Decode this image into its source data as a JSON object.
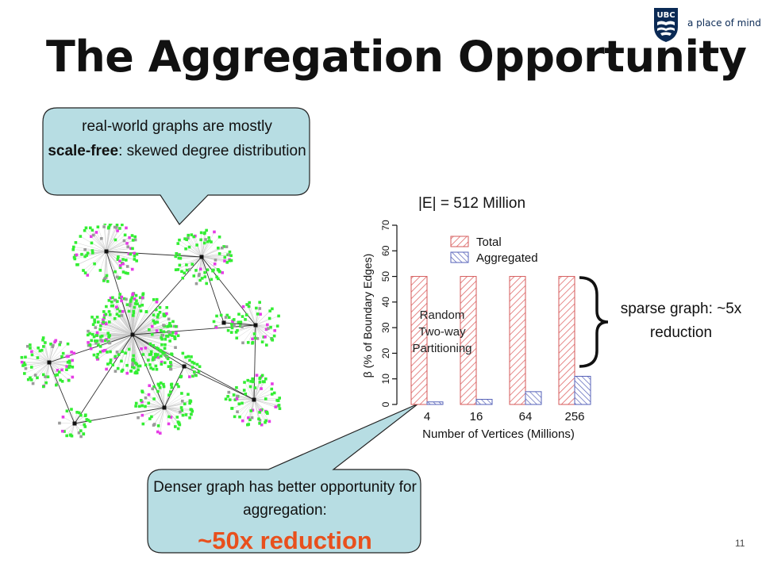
{
  "logo": {
    "text": "a place of mind",
    "shield_text": "UBC"
  },
  "title": "The Aggregation Opportunity",
  "callout_top": {
    "line1": "real-world graphs are mostly",
    "bold": "scale-free",
    "rest": ": skewed degree distribution"
  },
  "edges_label": "|E| = 512 Million",
  "sparse_note": "sparse graph: ~5x reduction",
  "callout_bottom": {
    "text": "Denser graph has better opportunity for aggregation:",
    "highlight": "~50x reduction"
  },
  "page_number": "11",
  "colors": {
    "bubble_fill": "#b7dde3",
    "total_hatch": "#e06a6a",
    "aggregated_hatch": "#5561b8",
    "accent_red": "#e8501d",
    "node_green": "#33ee33",
    "node_magenta": "#e63ce6",
    "node_gray": "#9a9a9a"
  },
  "chart_data": {
    "type": "bar",
    "categories": [
      "4",
      "16",
      "64",
      "256"
    ],
    "series": [
      {
        "name": "Total",
        "values": [
          50,
          50,
          50,
          50
        ]
      },
      {
        "name": "Aggregated",
        "values": [
          1,
          2,
          5,
          11
        ]
      }
    ],
    "xlabel": "Number of Vertices (Millions)",
    "ylabel": "β (% of Boundary Edges)",
    "ylim": [
      0,
      70
    ],
    "yticks": [
      "0",
      "10",
      "20",
      "30",
      "40",
      "50",
      "60",
      "70"
    ],
    "annotation": [
      "Random",
      "Two-way",
      "Partitioning"
    ],
    "legend_position": "top-right",
    "grid": false
  }
}
